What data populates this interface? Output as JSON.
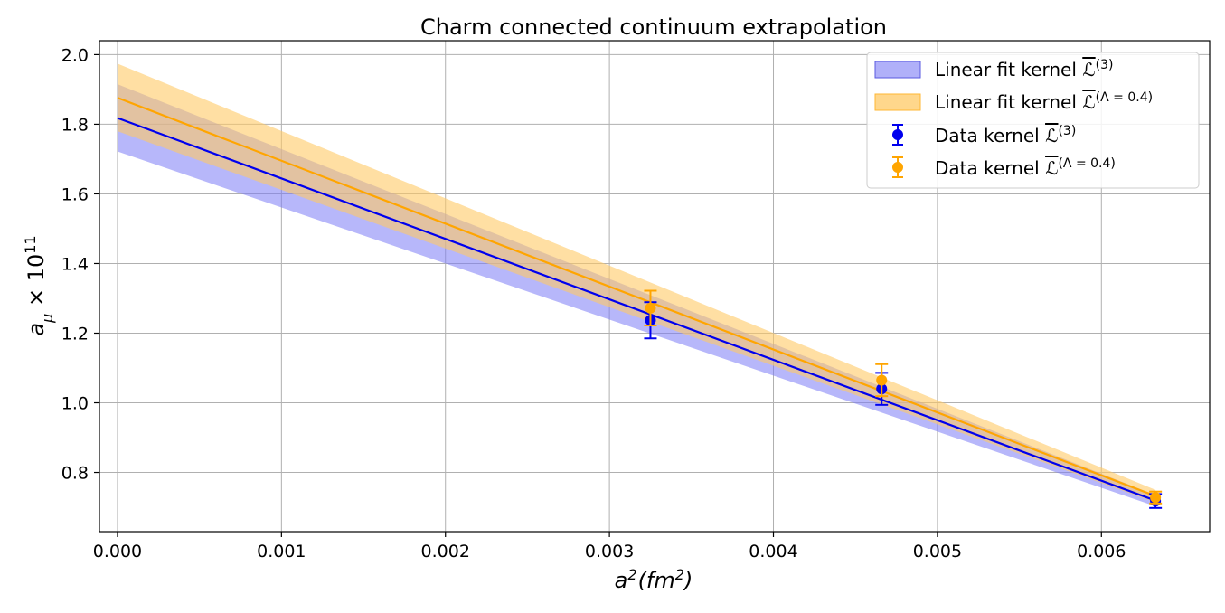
{
  "chart_data": {
    "type": "line",
    "title": "Charm connected continuum extrapolation",
    "xlabel_main": "a",
    "xlabel_sup": "2",
    "xlabel_rest": "(fm",
    "xlabel_sup2": "2",
    "xlabel_close": ")",
    "ylabel_main": "a",
    "ylabel_sub": "μ",
    "ylabel_rest": " × 10",
    "ylabel_sup": "11",
    "xlim": [
      -0.00011,
      0.00666
    ],
    "ylim": [
      0.63,
      2.04
    ],
    "xticks": [
      0.0,
      0.001,
      0.002,
      0.003,
      0.004,
      0.005,
      0.006
    ],
    "xtick_labels": [
      "0.000",
      "0.001",
      "0.002",
      "0.003",
      "0.004",
      "0.005",
      "0.006"
    ],
    "yticks": [
      0.8,
      1.0,
      1.2,
      1.4,
      1.6,
      1.8,
      2.0
    ],
    "ytick_labels": [
      "0.8",
      "1.0",
      "1.2",
      "1.4",
      "1.6",
      "1.8",
      "2.0"
    ],
    "grid": true,
    "legend_position": "top-right",
    "fits": [
      {
        "name": "Linear fit kernel L̄(3)",
        "legend_main": "Linear fit kernel ",
        "legend_sup": "(3)",
        "color": "#0000ee",
        "band_color": "#7b7bf5",
        "x": [
          0.0,
          0.00633
        ],
        "center": [
          1.818,
          0.719
        ],
        "upper": [
          1.915,
          0.735
        ],
        "lower": [
          1.722,
          0.703
        ]
      },
      {
        "name": "Linear fit kernel L̄(Λ=0.4)",
        "legend_main": "Linear fit kernel ",
        "legend_sup": "(Λ = 0.4)",
        "color": "#ffa500",
        "band_color": "#ffc966",
        "x": [
          0.0,
          0.00633
        ],
        "center": [
          1.876,
          0.732
        ],
        "upper": [
          1.974,
          0.75
        ],
        "lower": [
          1.78,
          0.714
        ]
      }
    ],
    "series": [
      {
        "name": "Data kernel L̄(3)",
        "legend_main": "Data kernel ",
        "legend_sup": "(3)",
        "color": "#0000ee",
        "x": [
          0.00325,
          0.00466,
          0.00633
        ],
        "y": [
          1.237,
          1.04,
          0.718
        ],
        "yerr": [
          0.052,
          0.046,
          0.02
        ]
      },
      {
        "name": "Data kernel L̄(Λ=0.4)",
        "legend_main": "Data kernel ",
        "legend_sup": "(Λ = 0.4)",
        "color": "#ffa500",
        "x": [
          0.00325,
          0.00466,
          0.00633
        ],
        "y": [
          1.272,
          1.065,
          0.728
        ],
        "yerr": [
          0.05,
          0.046,
          0.017
        ]
      }
    ]
  }
}
